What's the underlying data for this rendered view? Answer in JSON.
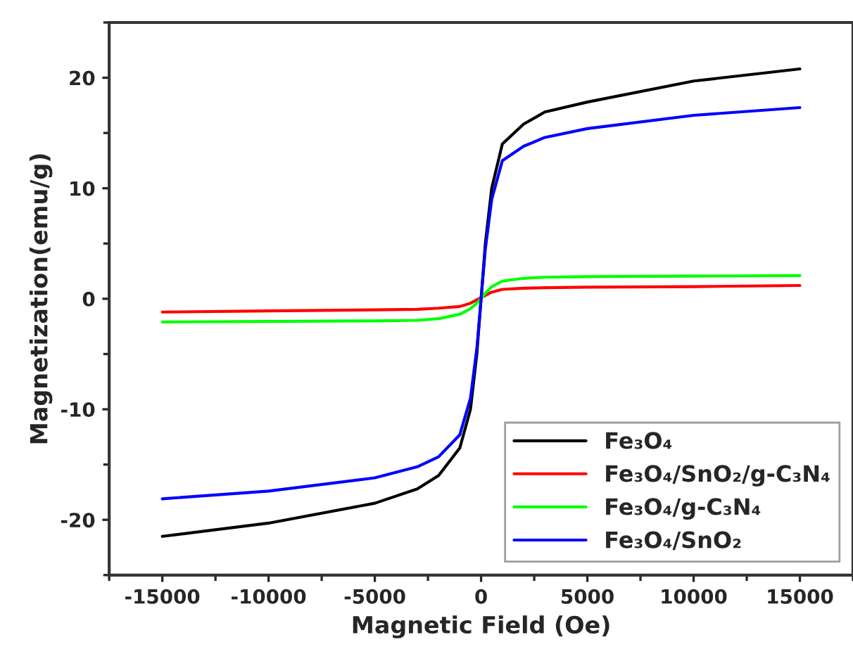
{
  "chart_data": {
    "type": "line",
    "xlabel": "Magnetic Field (Oe)",
    "ylabel": "Magnetization(emu/g)",
    "xlim": [
      -17500,
      17500
    ],
    "ylim": [
      -25,
      25
    ],
    "xticks": [
      -15000,
      -10000,
      -5000,
      0,
      5000,
      10000,
      15000
    ],
    "yticks": [
      -20,
      -10,
      0,
      10,
      20
    ],
    "grid": false,
    "legend": "bottom right",
    "marker": "none",
    "line_style": "solid",
    "x": [
      -15000,
      -10000,
      -5000,
      -3000,
      -2000,
      -1000,
      -500,
      -200,
      0,
      200,
      500,
      1000,
      2000,
      3000,
      5000,
      10000,
      15000
    ],
    "series": [
      {
        "name": "Fe₃O₄",
        "color": "#000000",
        "values": [
          -21.5,
          -20.3,
          -18.5,
          -17.2,
          -16.0,
          -13.5,
          -10.0,
          -5.0,
          0.0,
          5.0,
          10.0,
          14.0,
          15.8,
          16.9,
          17.8,
          19.7,
          20.8
        ]
      },
      {
        "name": "Fe₃O₄/SnO₂/g-C₃N₄",
        "color": "#ff0000",
        "values": [
          -1.2,
          -1.1,
          -1.0,
          -0.95,
          -0.85,
          -0.7,
          -0.4,
          -0.1,
          0.1,
          0.3,
          0.6,
          0.85,
          0.95,
          1.0,
          1.05,
          1.1,
          1.2
        ]
      },
      {
        "name": "Fe₃O₄/g-C₃N₄",
        "color": "#00ff00",
        "values": [
          -2.1,
          -2.05,
          -2.0,
          -1.95,
          -1.8,
          -1.4,
          -0.9,
          -0.4,
          0.0,
          0.5,
          1.1,
          1.6,
          1.85,
          1.95,
          2.0,
          2.05,
          2.1
        ]
      },
      {
        "name": "Fe₃O₄/SnO₂",
        "color": "#0000ff",
        "values": [
          -18.1,
          -17.4,
          -16.2,
          -15.2,
          -14.3,
          -12.3,
          -9.0,
          -4.5,
          0.0,
          4.5,
          9.0,
          12.5,
          13.8,
          14.6,
          15.4,
          16.6,
          17.3
        ]
      }
    ]
  }
}
